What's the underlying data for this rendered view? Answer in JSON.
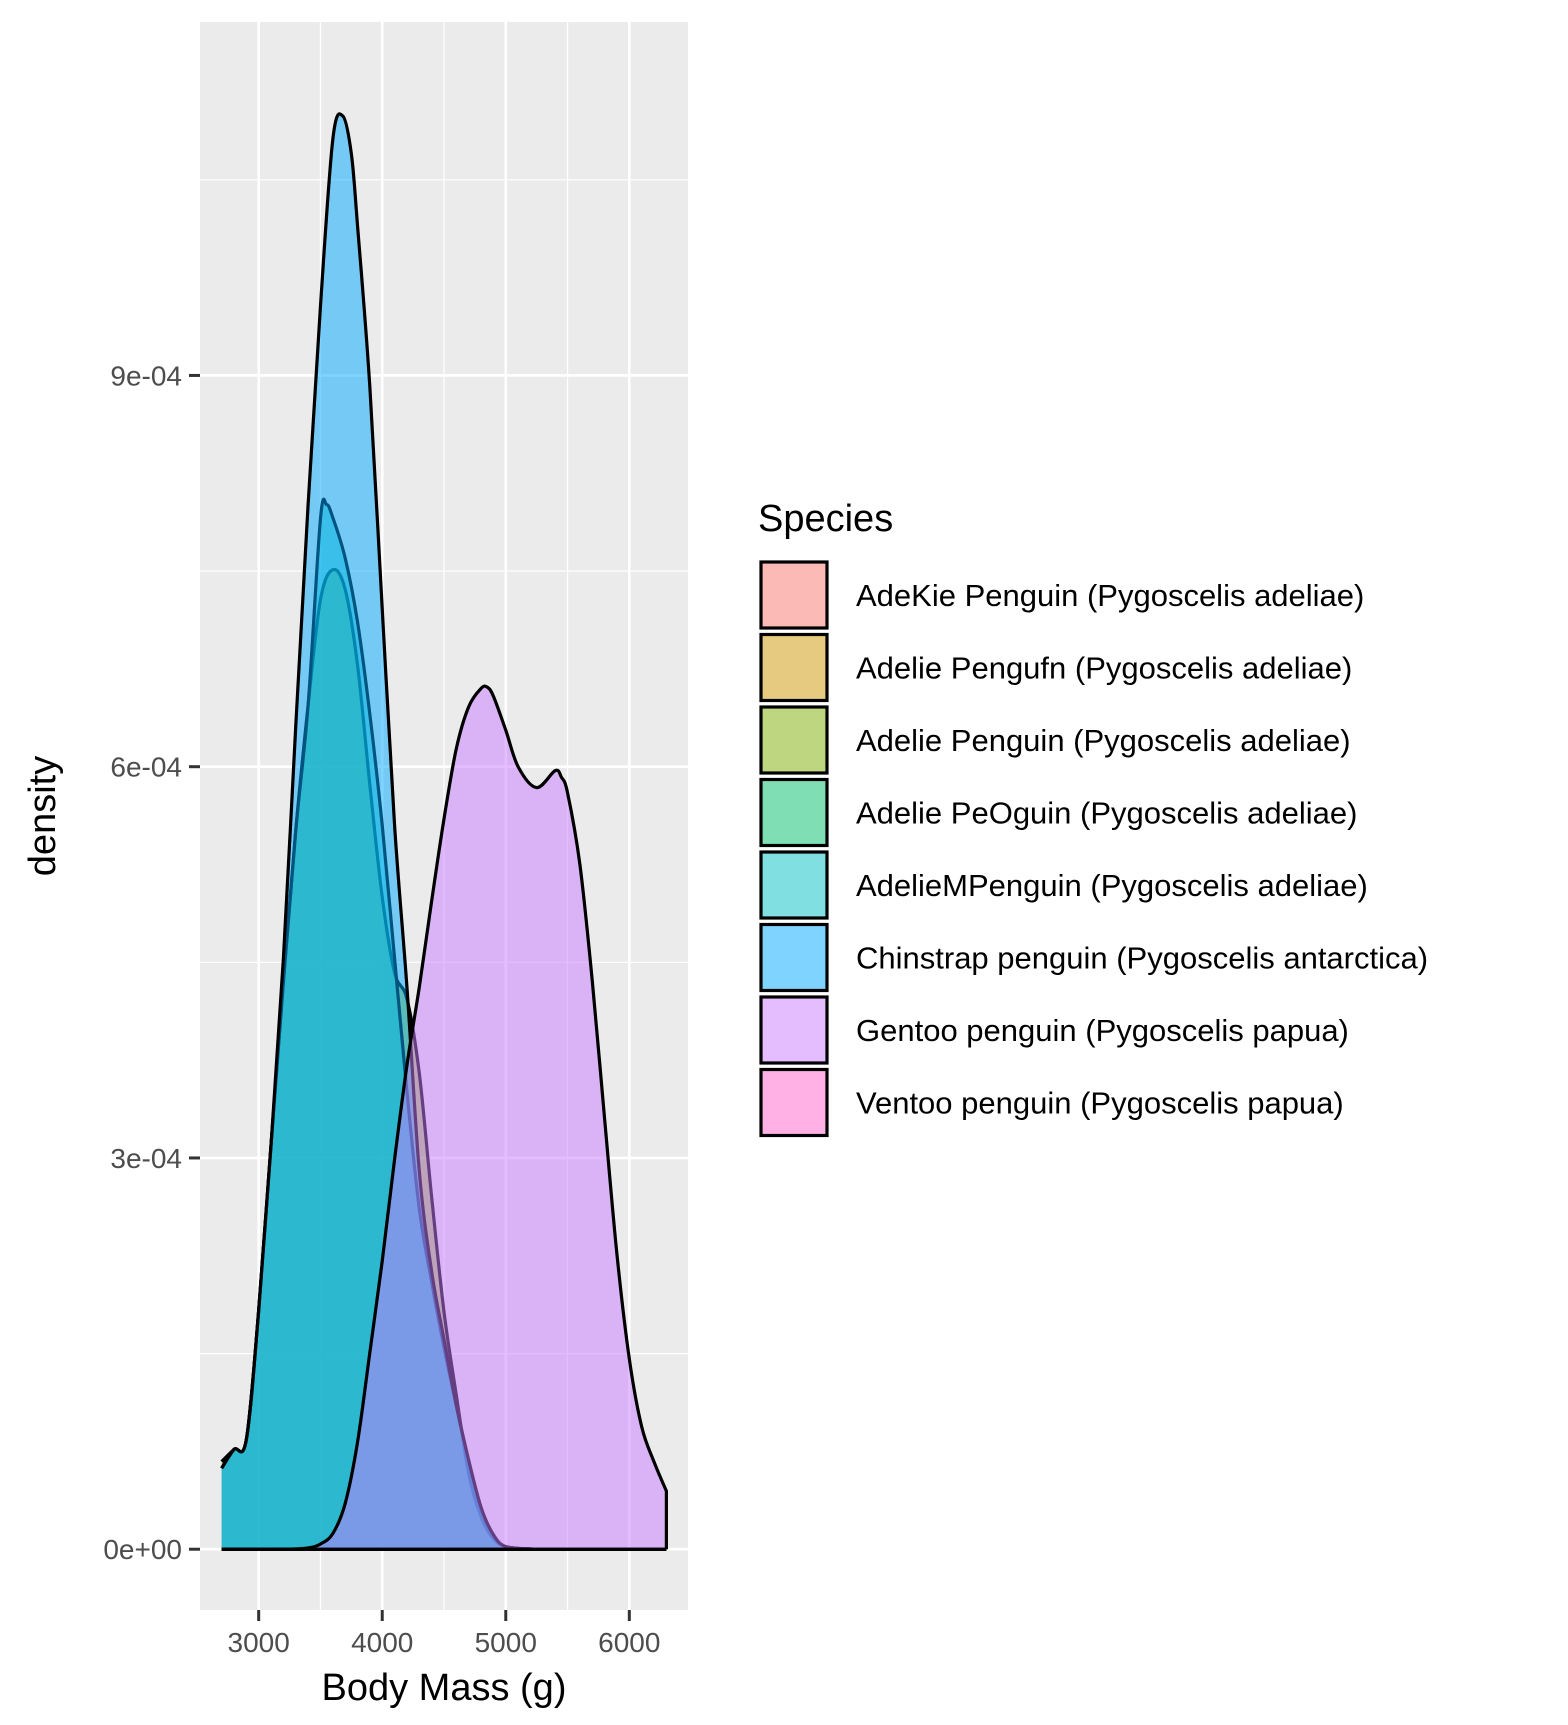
{
  "chart_data": {
    "type": "area",
    "subtype": "density",
    "xlabel": "Body Mass (g)",
    "ylabel": "density",
    "xlim": [
      2525,
      6475
    ],
    "ylim": [
      -4.66e-05,
      0.001171
    ],
    "x_ticks": [
      3000,
      4000,
      5000,
      6000
    ],
    "x_tick_labels": [
      "3000",
      "4000",
      "5000",
      "6000"
    ],
    "y_ticks": [
      0,
      0.0003,
      0.0006,
      0.0009
    ],
    "y_tick_labels": [
      "0e+00",
      "3e-04",
      "6e-04",
      "9e-04"
    ],
    "grid": true,
    "fill_opacity": 0.5,
    "legend": {
      "title": "Species",
      "position": "right",
      "entries": [
        {
          "label": "AdeKie Penguin (Pygoscelis adeliae)",
          "color": "#F8766D"
        },
        {
          "label": "Adelie Pengufn (Pygoscelis adeliae)",
          "color": "#CD9600"
        },
        {
          "label": "Adelie Penguin (Pygoscelis adeliae)",
          "color": "#7CAE00"
        },
        {
          "label": "Adelie PeOguin (Pygoscelis adeliae)",
          "color": "#00BE67"
        },
        {
          "label": "AdelieMPenguin (Pygoscelis adeliae)",
          "color": "#00BFC4"
        },
        {
          "label": "Chinstrap penguin (Pygoscelis antarctica)",
          "color": "#00A9FF"
        },
        {
          "label": "Gentoo penguin (Pygoscelis papua)",
          "color": "#C77CFF"
        },
        {
          "label": "Ventoo penguin (Pygoscelis papua)",
          "color": "#FF61CC"
        }
      ]
    },
    "series": [
      {
        "name": "Adelie Penguin (Pygoscelis adeliae)",
        "color": "#7CAE00",
        "points": [
          [
            2700,
            6.72e-05
          ],
          [
            2800,
            7.65e-05
          ],
          [
            2900,
            8.4e-05
          ],
          [
            3000,
            0.000183
          ],
          [
            3100,
            0.00031
          ],
          [
            3200,
            0.000435
          ],
          [
            3300,
            0.000551
          ],
          [
            3400,
            0.000647
          ],
          [
            3500,
            0.000728
          ],
          [
            3600,
            0.000751
          ],
          [
            3700,
            0.000736
          ],
          [
            3800,
            0.000678
          ],
          [
            3900,
            0.000586
          ],
          [
            4000,
            0.0005
          ],
          [
            4100,
            0.000442
          ],
          [
            4200,
            0.000422
          ],
          [
            4300,
            0.000365
          ],
          [
            4400,
            0.00027
          ],
          [
            4500,
            0.000182
          ],
          [
            4600,
            0.000118
          ],
          [
            4700,
            5.8e-05
          ],
          [
            4800,
            2.5e-05
          ],
          [
            4900,
            8e-06
          ],
          [
            5000,
            2e-06
          ],
          [
            5200,
            2e-07
          ],
          [
            5400,
            0
          ],
          [
            5800,
            0
          ],
          [
            6300,
            0
          ]
        ]
      },
      {
        "name": "AdelieMPenguin (Pygoscelis adeliae)",
        "color": "#00BFC4",
        "points": [
          [
            2700,
            6.21e-05
          ],
          [
            2800,
            7.65e-05
          ],
          [
            2900,
            8.4e-05
          ],
          [
            3000,
            0.000183
          ],
          [
            3100,
            0.00031
          ],
          [
            3200,
            0.000435
          ],
          [
            3300,
            0.000551
          ],
          [
            3400,
            0.000647
          ],
          [
            3500,
            0.00079
          ],
          [
            3550,
            0.000801
          ],
          [
            3600,
            0.000791
          ],
          [
            3700,
            0.00076
          ],
          [
            3800,
            0.000711
          ],
          [
            3900,
            0.00064
          ],
          [
            4000,
            0.000555
          ],
          [
            4100,
            0.000453
          ],
          [
            4200,
            0.000351
          ],
          [
            4300,
            0.000261
          ],
          [
            4400,
            0.000205
          ],
          [
            4500,
            0.000155
          ],
          [
            4600,
            0.00011
          ],
          [
            4700,
            6.8e-05
          ],
          [
            4800,
            3.2e-05
          ],
          [
            4900,
            1.1e-05
          ],
          [
            5000,
            2e-06
          ],
          [
            5200,
            2e-07
          ],
          [
            5400,
            0
          ],
          [
            5800,
            0
          ],
          [
            6300,
            0
          ]
        ]
      },
      {
        "name": "Chinstrap penguin (Pygoscelis antarctica)",
        "color": "#00A9FF",
        "points": [
          [
            2700,
            6.21e-05
          ],
          [
            2800,
            7.65e-05
          ],
          [
            2900,
            8.4e-05
          ],
          [
            3000,
            0.000183
          ],
          [
            3100,
            0.00031
          ],
          [
            3200,
            0.000453
          ],
          [
            3300,
            0.000631
          ],
          [
            3400,
            0.000801
          ],
          [
            3500,
            0.000953
          ],
          [
            3600,
            0.001081
          ],
          [
            3680,
            0.001099
          ],
          [
            3750,
            0.00107
          ],
          [
            3800,
            0.001015
          ],
          [
            3900,
            0.000891
          ],
          [
            4000,
            0.000721
          ],
          [
            4100,
            0.000555
          ],
          [
            4200,
            0.000431
          ],
          [
            4300,
            0.00029
          ],
          [
            4400,
            0.000213
          ],
          [
            4500,
            0.000161
          ],
          [
            4600,
            0.00011
          ],
          [
            4700,
            6.8e-05
          ],
          [
            4800,
            3.2e-05
          ],
          [
            4900,
            1.1e-05
          ],
          [
            5000,
            2e-06
          ],
          [
            5200,
            2e-07
          ],
          [
            5400,
            0
          ],
          [
            5800,
            0
          ],
          [
            6300,
            0
          ]
        ]
      },
      {
        "name": "Gentoo penguin (Pygoscelis papua)",
        "color": "#C77CFF",
        "points": [
          [
            2700,
            0
          ],
          [
            3200,
            0
          ],
          [
            3400,
            1e-06
          ],
          [
            3500,
            4e-06
          ],
          [
            3600,
            1.2e-05
          ],
          [
            3700,
            3.5e-05
          ],
          [
            3800,
            8.2e-05
          ],
          [
            3900,
            0.000151
          ],
          [
            4000,
            0.000221
          ],
          [
            4100,
            0.000299
          ],
          [
            4200,
            0.000371
          ],
          [
            4300,
            0.000431
          ],
          [
            4400,
            0.000497
          ],
          [
            4500,
            0.00056
          ],
          [
            4600,
            0.000614
          ],
          [
            4700,
            0.000646
          ],
          [
            4800,
            0.00066
          ],
          [
            4850,
            0.000661
          ],
          [
            4900,
            0.000654
          ],
          [
            5000,
            0.000628
          ],
          [
            5100,
            0.0006
          ],
          [
            5250,
            0.000584
          ],
          [
            5400,
            0.000597
          ],
          [
            5450,
            0.000592
          ],
          [
            5500,
            0.00058
          ],
          [
            5600,
            0.000525
          ],
          [
            5700,
            0.000436
          ],
          [
            5800,
            0.00033
          ],
          [
            5900,
            0.000226
          ],
          [
            6000,
            0.000146
          ],
          [
            6100,
            9.4e-05
          ],
          [
            6200,
            6.7e-05
          ],
          [
            6300,
            4.46e-05
          ]
        ]
      }
    ]
  }
}
